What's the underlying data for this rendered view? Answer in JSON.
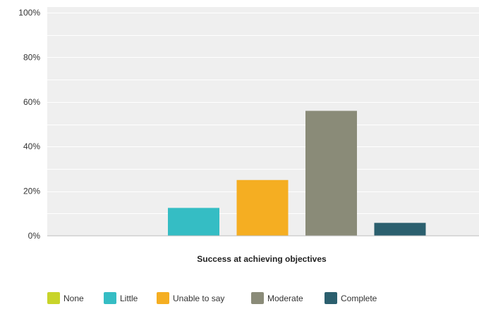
{
  "chart_data": {
    "type": "bar",
    "title": "",
    "xlabel": "Success at achieving objectives",
    "ylabel": "",
    "ylim": [
      0,
      100
    ],
    "y_ticks": [
      "0%",
      "20%",
      "40%",
      "60%",
      "80%",
      "100%"
    ],
    "y_tick_values": [
      0,
      20,
      40,
      60,
      80,
      100
    ],
    "grid": true,
    "legend_position": "bottom-left",
    "categories": [
      "None",
      "Little",
      "Unable to say",
      "Moderate",
      "Complete"
    ],
    "values": [
      0,
      12.5,
      25,
      56,
      5.8
    ],
    "colors": [
      "#c8d42a",
      "#35bdc4",
      "#f5ae22",
      "#8a8b78",
      "#2b5f6e"
    ]
  }
}
